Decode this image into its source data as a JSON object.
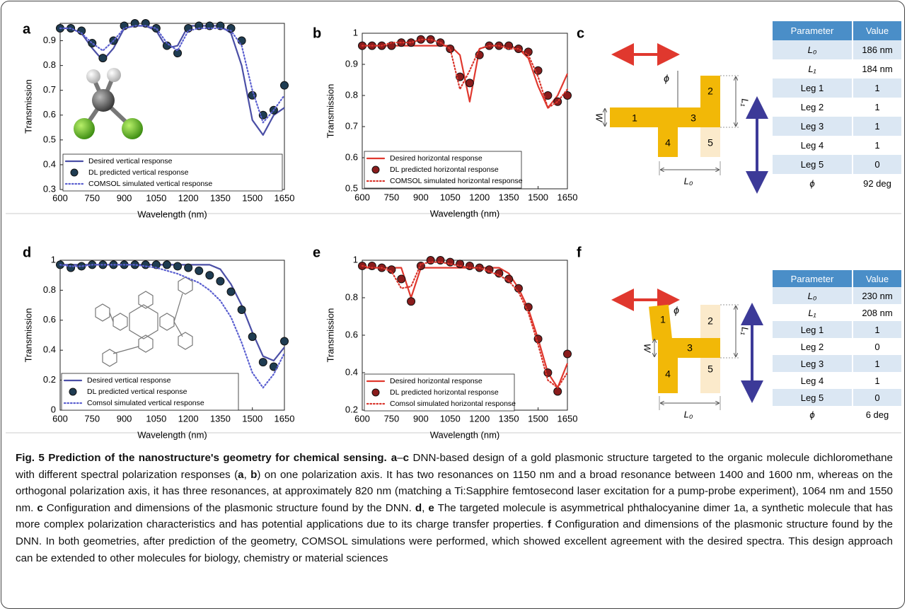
{
  "chart_data": [
    {
      "type": "line",
      "panel": "a",
      "xlabel": "Wavelength (nm)",
      "ylabel": "Transmission",
      "x": [
        600,
        650,
        700,
        750,
        800,
        850,
        900,
        950,
        1000,
        1050,
        1100,
        1150,
        1200,
        1250,
        1300,
        1350,
        1400,
        1450,
        1500,
        1550,
        1600,
        1650
      ],
      "xlim": [
        600,
        1650
      ],
      "xticks": [
        600,
        750,
        900,
        1050,
        1200,
        1350,
        1500,
        1650
      ],
      "ylim": [
        0.3,
        0.97
      ],
      "yticks": [
        0.3,
        0.4,
        0.5,
        0.6,
        0.7,
        0.8,
        0.9
      ],
      "legend": "lower left",
      "series": [
        {
          "name": "Desired vertical response",
          "color": "#4b4fa6",
          "style": "solid",
          "values": [
            0.95,
            0.95,
            0.93,
            0.87,
            0.82,
            0.87,
            0.95,
            0.96,
            0.96,
            0.94,
            0.87,
            0.88,
            0.96,
            0.96,
            0.96,
            0.96,
            0.93,
            0.8,
            0.58,
            0.52,
            0.6,
            0.63
          ]
        },
        {
          "name": "DL predicted vertical response",
          "color": "#1f3c52",
          "style": "marker",
          "values": [
            0.95,
            0.95,
            0.94,
            0.89,
            0.83,
            0.9,
            0.96,
            0.97,
            0.97,
            0.95,
            0.88,
            0.85,
            0.95,
            0.96,
            0.96,
            0.96,
            0.95,
            0.9,
            0.68,
            0.6,
            0.62,
            0.72
          ]
        },
        {
          "name": "COMSOL simulated vertical response",
          "color": "#5a5fd0",
          "style": "dotted",
          "values": [
            0.95,
            0.95,
            0.93,
            0.89,
            0.86,
            0.9,
            0.95,
            0.96,
            0.96,
            0.95,
            0.89,
            0.86,
            0.94,
            0.95,
            0.95,
            0.95,
            0.94,
            0.88,
            0.7,
            0.57,
            0.62,
            0.68
          ]
        }
      ]
    },
    {
      "type": "line",
      "panel": "b",
      "xlabel": "Wavelength (nm)",
      "ylabel": "Transmission",
      "x": [
        600,
        650,
        700,
        750,
        800,
        850,
        900,
        950,
        1000,
        1050,
        1100,
        1150,
        1200,
        1250,
        1300,
        1350,
        1400,
        1450,
        1500,
        1550,
        1600,
        1650
      ],
      "xlim": [
        600,
        1650
      ],
      "xticks": [
        600,
        750,
        900,
        1050,
        1200,
        1350,
        1500,
        1650
      ],
      "ylim": [
        0.5,
        1
      ],
      "yticks": [
        0.5,
        0.6,
        0.7,
        0.8,
        0.9,
        1
      ],
      "legend": "lower left",
      "series": [
        {
          "name": "Desired horizontal response",
          "color": "#e0382e",
          "style": "solid",
          "values": [
            0.96,
            0.96,
            0.96,
            0.96,
            0.96,
            0.96,
            0.96,
            0.96,
            0.96,
            0.96,
            0.93,
            0.78,
            0.95,
            0.96,
            0.96,
            0.96,
            0.95,
            0.92,
            0.83,
            0.76,
            0.8,
            0.87
          ]
        },
        {
          "name": "DL predicted horizontal response",
          "color": "#8a1c1c",
          "style": "marker",
          "values": [
            0.96,
            0.96,
            0.96,
            0.96,
            0.97,
            0.97,
            0.98,
            0.98,
            0.97,
            0.95,
            0.86,
            0.84,
            0.93,
            0.96,
            0.96,
            0.96,
            0.95,
            0.94,
            0.88,
            0.8,
            0.78,
            0.8
          ]
        },
        {
          "name": "COMSOL simulated horizontal response",
          "color": "#d9342b",
          "style": "dotted",
          "values": [
            0.96,
            0.96,
            0.96,
            0.97,
            0.97,
            0.97,
            0.98,
            0.98,
            0.97,
            0.95,
            0.82,
            0.88,
            0.95,
            0.96,
            0.96,
            0.95,
            0.95,
            0.93,
            0.86,
            0.76,
            0.78,
            0.82
          ]
        }
      ]
    },
    {
      "type": "line",
      "panel": "d",
      "xlabel": "Wavelength (nm)",
      "ylabel": "Transmission",
      "x": [
        600,
        650,
        700,
        750,
        800,
        850,
        900,
        950,
        1000,
        1050,
        1100,
        1150,
        1200,
        1250,
        1300,
        1350,
        1400,
        1450,
        1500,
        1550,
        1600,
        1650
      ],
      "xlim": [
        600,
        1650
      ],
      "xticks": [
        600,
        750,
        900,
        1050,
        1200,
        1350,
        1500,
        1650
      ],
      "ylim": [
        0,
        1
      ],
      "yticks": [
        0,
        0.2,
        0.4,
        0.6,
        0.8,
        1
      ],
      "legend": "lower left",
      "series": [
        {
          "name": "Desired vertical response",
          "color": "#4b4fa6",
          "style": "solid",
          "values": [
            0.97,
            0.97,
            0.97,
            0.97,
            0.97,
            0.97,
            0.97,
            0.97,
            0.97,
            0.97,
            0.97,
            0.97,
            0.97,
            0.97,
            0.97,
            0.94,
            0.84,
            0.7,
            0.52,
            0.36,
            0.33,
            0.42
          ]
        },
        {
          "name": "DL predicted vertical response",
          "color": "#1f3c52",
          "style": "marker",
          "values": [
            0.97,
            0.95,
            0.96,
            0.97,
            0.97,
            0.97,
            0.97,
            0.97,
            0.97,
            0.97,
            0.97,
            0.96,
            0.95,
            0.93,
            0.9,
            0.86,
            0.79,
            0.67,
            0.49,
            0.32,
            0.29,
            0.46
          ]
        },
        {
          "name": "Comsol simulated vertical response",
          "color": "#5a5fd0",
          "style": "dotted",
          "values": [
            0.97,
            0.96,
            0.96,
            0.97,
            0.97,
            0.97,
            0.97,
            0.97,
            0.96,
            0.95,
            0.93,
            0.91,
            0.88,
            0.85,
            0.8,
            0.73,
            0.62,
            0.45,
            0.25,
            0.15,
            0.24,
            0.38
          ]
        }
      ]
    },
    {
      "type": "line",
      "panel": "e",
      "xlabel": "Wavelength (nm)",
      "ylabel": "Transmission",
      "x": [
        600,
        650,
        700,
        750,
        800,
        850,
        900,
        950,
        1000,
        1050,
        1100,
        1150,
        1200,
        1250,
        1300,
        1350,
        1400,
        1450,
        1500,
        1550,
        1600,
        1650
      ],
      "xlim": [
        600,
        1650
      ],
      "xticks": [
        600,
        750,
        900,
        1050,
        1200,
        1350,
        1500,
        1650
      ],
      "ylim": [
        0.2,
        1
      ],
      "yticks": [
        0.2,
        0.4,
        0.6,
        0.8,
        1
      ],
      "legend": "lower left",
      "series": [
        {
          "name": "Desired horizontal response",
          "color": "#e0382e",
          "style": "solid",
          "values": [
            0.96,
            0.96,
            0.96,
            0.96,
            0.96,
            0.8,
            0.96,
            0.96,
            0.96,
            0.96,
            0.96,
            0.96,
            0.96,
            0.96,
            0.96,
            0.93,
            0.85,
            0.74,
            0.58,
            0.4,
            0.32,
            0.45
          ]
        },
        {
          "name": "DL predicted horizontal response",
          "color": "#8a1c1c",
          "style": "marker",
          "values": [
            0.97,
            0.97,
            0.96,
            0.95,
            0.9,
            0.78,
            0.97,
            1,
            1,
            0.99,
            0.98,
            0.97,
            0.96,
            0.95,
            0.93,
            0.9,
            0.85,
            0.75,
            0.58,
            0.4,
            0.3,
            0.5
          ]
        },
        {
          "name": "Comsol simulated horizontal response",
          "color": "#d9342b",
          "style": "dotted",
          "values": [
            0.97,
            0.96,
            0.96,
            0.94,
            0.85,
            0.86,
            0.98,
            0.99,
            0.99,
            0.98,
            0.97,
            0.96,
            0.96,
            0.94,
            0.92,
            0.89,
            0.83,
            0.72,
            0.55,
            0.36,
            0.32,
            0.4
          ]
        }
      ]
    }
  ],
  "diagrams": [
    {
      "panel": "c",
      "legs": [
        "1",
        "2",
        "3",
        "4",
        "5"
      ],
      "w_label": "W",
      "l1_label": "L₁",
      "l0_label": "L₀",
      "phi_label": "ϕ",
      "table": {
        "header": [
          "Parameter",
          "Value"
        ],
        "rows": [
          [
            "L₀",
            "186 nm"
          ],
          [
            "L₁",
            "184 nm"
          ],
          [
            "Leg 1",
            "1"
          ],
          [
            "Leg 2",
            "1"
          ],
          [
            "Leg 3",
            "1"
          ],
          [
            "Leg 4",
            "1"
          ],
          [
            "Leg 5",
            "0"
          ],
          [
            "ϕ",
            "92 deg"
          ]
        ]
      }
    },
    {
      "panel": "f",
      "legs": [
        "1",
        "2",
        "3",
        "4",
        "5"
      ],
      "w_label": "W",
      "l1_label": "L₁",
      "l0_label": "L₀",
      "phi_label": "ϕ",
      "table": {
        "header": [
          "Parameter",
          "Value"
        ],
        "rows": [
          [
            "L₀",
            "230 nm"
          ],
          [
            "L₁",
            "208 nm"
          ],
          [
            "Leg 1",
            "1"
          ],
          [
            "Leg 2",
            "0"
          ],
          [
            "Leg 3",
            "1"
          ],
          [
            "Leg 4",
            "1"
          ],
          [
            "Leg 5",
            "0"
          ],
          [
            "ϕ",
            "6 deg"
          ]
        ]
      }
    }
  ],
  "caption": [
    {
      "text": "Fig. 5 Prediction of the nanostructure's geometry for chemical sensing.",
      "bold": true
    },
    {
      "text": "a",
      "bold": true
    },
    {
      "text": "–",
      "bold": false
    },
    {
      "text": "c",
      "bold": true
    },
    {
      "text": " DNN-based design of a gold plasmonic structure targeted to the organic molecule dichloromethane with different spectral polarization responses (",
      "bold": false
    },
    {
      "text": "a",
      "bold": true
    },
    {
      "text": ", ",
      "bold": false
    },
    {
      "text": "b",
      "bold": true
    },
    {
      "text": ") on one polarization axis. It has two resonances on 1150 nm and a broad resonance between 1400 and 1600 nm, whereas on the orthogonal polarization axis, it has three resonances, at approximately 820 nm (matching a Ti:Sapphire femtosecond laser excitation for a pump-probe experiment), 1064 nm and 1550 nm. ",
      "bold": false
    },
    {
      "text": "c",
      "bold": true
    },
    {
      "text": " Configuration and dimensions of the plasmonic structure found by the DNN. ",
      "bold": false
    },
    {
      "text": "d",
      "bold": true
    },
    {
      "text": ", ",
      "bold": false
    },
    {
      "text": "e",
      "bold": true
    },
    {
      "text": " The targeted molecule is asymmetrical phthalocyanine dimer 1a, a synthetic molecule that has more complex polarization characteristics and has potential applications due to its charge transfer properties. ",
      "bold": false
    },
    {
      "text": "f",
      "bold": true
    },
    {
      "text": " Configuration and dimensions of the plasmonic structure found by the DNN. In both geometries, after prediction of the geometry, COMSOL simulations were performed, which showed excellent agreement with the desired spectra. This design approach can be extended to other molecules for biology, chemistry or material sciences",
      "bold": false
    }
  ]
}
